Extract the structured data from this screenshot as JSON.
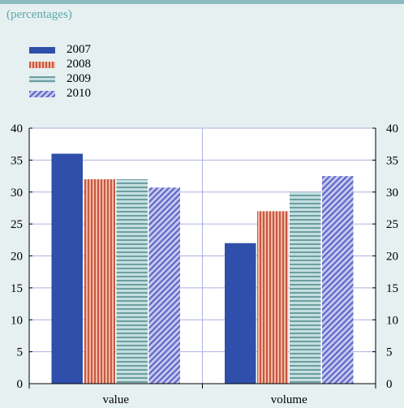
{
  "subtitle": "(percentages)",
  "chart_data": {
    "type": "bar",
    "categories": [
      "value",
      "volume"
    ],
    "series": [
      {
        "name": "2007",
        "values": [
          36,
          22
        ],
        "color": "#2f4faa",
        "pattern": "solid"
      },
      {
        "name": "2008",
        "values": [
          32,
          27
        ],
        "color": "#e0826a",
        "pattern": "vertical-stripes"
      },
      {
        "name": "2009",
        "values": [
          32,
          30
        ],
        "color": "#9ec4c6",
        "pattern": "horizontal-stripes"
      },
      {
        "name": "2010",
        "values": [
          30.7,
          32.5
        ],
        "color": "#8a90d8",
        "pattern": "diagonal-hatch"
      }
    ],
    "ylim": [
      0,
      40
    ],
    "yticks": [
      0,
      5,
      10,
      15,
      20,
      25,
      30,
      35,
      40
    ],
    "secondary_y_axis": true,
    "grid": true,
    "legend": "top-left",
    "xlabel": "",
    "ylabel": ""
  }
}
